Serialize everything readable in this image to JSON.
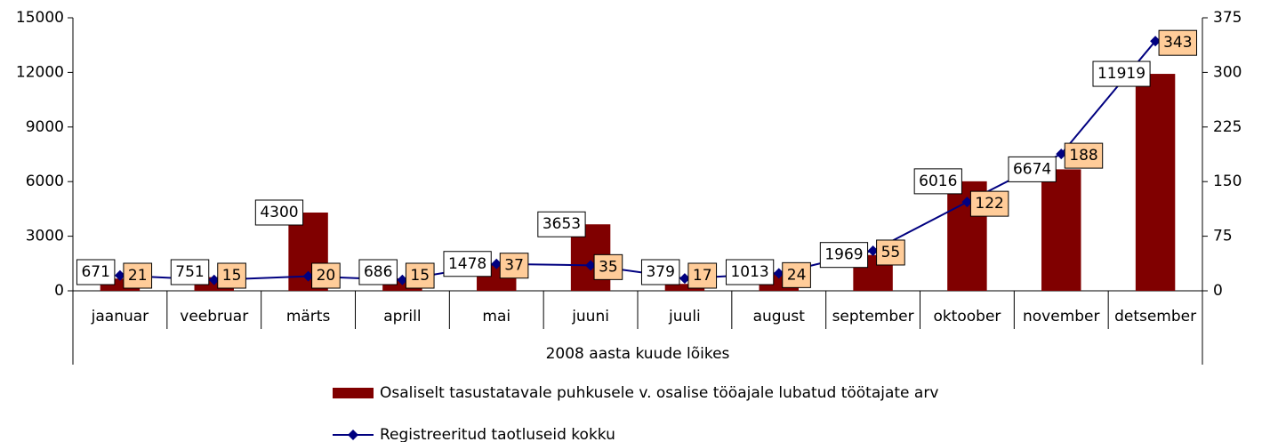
{
  "chart_data": {
    "type": "bar",
    "xlabel": "2008 aasta kuude lõikes",
    "categories": [
      "jaanuar",
      "veebruar",
      "märts",
      "aprill",
      "mai",
      "juuni",
      "juuli",
      "august",
      "september",
      "oktoober",
      "november",
      "detsember"
    ],
    "series": [
      {
        "name": "Osaliselt tasustatavale puhkusele v. osalise tööajale lubatud töötajate arv",
        "color": "#800000",
        "type": "bar",
        "values": [
          671,
          751,
          4300,
          686,
          1478,
          3653,
          379,
          1013,
          1969,
          6016,
          6674,
          11919
        ]
      },
      {
        "name": "Registreeritud taotluseid kokku",
        "color": "#000080",
        "type": "line",
        "axis": "y2",
        "values": [
          21,
          15,
          20,
          15,
          37,
          35,
          17,
          24,
          55,
          122,
          188,
          343
        ]
      }
    ],
    "ylim": [
      0,
      15000
    ],
    "yticks": [
      0,
      3000,
      6000,
      9000,
      12000,
      15000
    ],
    "y2lim": [
      0,
      375
    ],
    "y2ticks": [
      0,
      75,
      150,
      225,
      300,
      375
    ],
    "legend": "bottom"
  }
}
